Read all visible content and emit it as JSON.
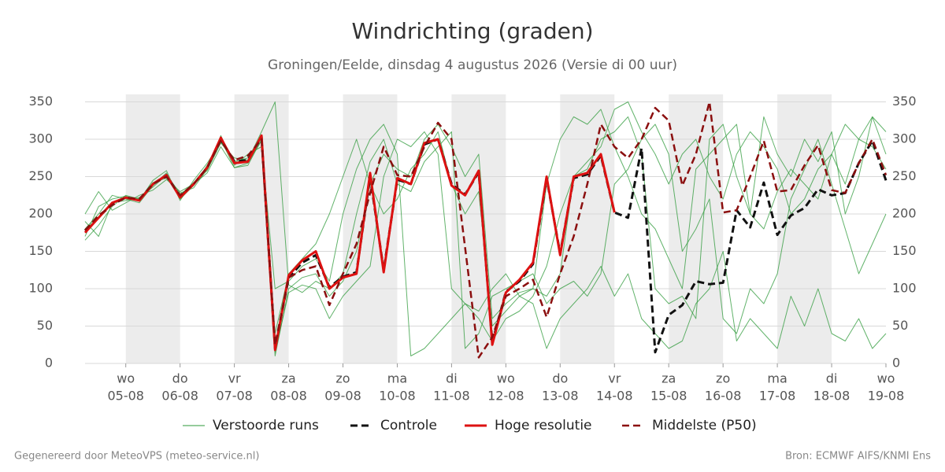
{
  "chart_data": {
    "type": "line",
    "title": "Windrichting (graden)",
    "subtitle": "Groningen/Eelde, dinsdag  4 augustus 2026 (Versie di 00 uur)",
    "footer_left": "Gegenereerd door MeteoVPS (meteo-service.nl)",
    "footer_right": "Bron: ECMWF AIFS/KNMI Ens",
    "x": [
      4.25,
      4.5,
      4.75,
      5,
      5.25,
      5.5,
      5.75,
      6,
      6.25,
      6.5,
      6.75,
      7,
      7.25,
      7.5,
      7.75,
      8,
      8.25,
      8.5,
      8.75,
      9,
      9.25,
      9.5,
      9.75,
      10,
      10.25,
      10.5,
      10.75,
      11,
      11.25,
      11.5,
      11.75,
      12,
      12.25,
      12.5,
      12.75,
      13,
      13.25,
      13.5,
      13.75,
      14,
      14.25,
      14.5,
      14.75,
      15,
      15.25,
      15.5,
      15.75,
      16,
      16.25,
      16.5,
      16.75,
      17,
      17.25,
      17.5,
      17.75,
      18,
      18.25,
      18.5,
      18.75,
      19
    ],
    "xlim": [
      4.25,
      19
    ],
    "xticks": [
      {
        "value": 5,
        "label": "05-08",
        "weekday": "wo"
      },
      {
        "value": 6,
        "label": "06-08",
        "weekday": "do"
      },
      {
        "value": 7,
        "label": "07-08",
        "weekday": "vr"
      },
      {
        "value": 8,
        "label": "08-08",
        "weekday": "za"
      },
      {
        "value": 9,
        "label": "09-08",
        "weekday": "zo"
      },
      {
        "value": 10,
        "label": "10-08",
        "weekday": "ma"
      },
      {
        "value": 11,
        "label": "11-08",
        "weekday": "di"
      },
      {
        "value": 12,
        "label": "12-08",
        "weekday": "wo"
      },
      {
        "value": 13,
        "label": "13-08",
        "weekday": "do"
      },
      {
        "value": 14,
        "label": "14-08",
        "weekday": "vr"
      },
      {
        "value": 15,
        "label": "15-08",
        "weekday": "za"
      },
      {
        "value": 16,
        "label": "16-08",
        "weekday": "zo"
      },
      {
        "value": 17,
        "label": "17-08",
        "weekday": "ma"
      },
      {
        "value": 18,
        "label": "18-08",
        "weekday": "di"
      },
      {
        "value": 19,
        "label": "19-08",
        "weekday": "wo"
      }
    ],
    "shade": [
      [
        5,
        6
      ],
      [
        7,
        8
      ],
      [
        9,
        10
      ],
      [
        11,
        12
      ],
      [
        13,
        14
      ],
      [
        15,
        16
      ],
      [
        17,
        18
      ]
    ],
    "ylim": [
      0,
      360
    ],
    "yticks": [
      0,
      50,
      100,
      150,
      200,
      250,
      300,
      350
    ],
    "grid": true,
    "ensemble": {
      "name": "Verstoorde runs",
      "color": "#2e9a3a",
      "runs": [
        [
          180,
          200,
          225,
          220,
          215,
          238,
          255,
          220,
          238,
          265,
          300,
          262,
          265,
          300,
          10,
          100,
          115,
          120,
          90,
          110,
          150,
          240,
          280,
          260,
          250,
          300,
          320,
          290,
          250,
          280,
          60,
          80,
          95,
          100,
          90,
          120,
          250,
          260,
          300,
          310,
          330,
          280,
          100,
          80,
          90,
          60,
          300,
          320,
          250,
          200,
          330,
          280,
          250,
          300,
          270,
          310,
          200,
          250,
          330,
          280
        ],
        [
          165,
          185,
          210,
          225,
          220,
          242,
          248,
          225,
          242,
          258,
          295,
          275,
          272,
          310,
          350,
          105,
          95,
          110,
          100,
          120,
          200,
          270,
          300,
          240,
          230,
          270,
          290,
          310,
          20,
          40,
          90,
          100,
          110,
          120,
          80,
          100,
          110,
          90,
          120,
          240,
          260,
          300,
          320,
          280,
          150,
          180,
          220,
          60,
          40,
          100,
          80,
          120,
          220,
          260,
          300,
          240,
          180,
          120,
          160,
          200
        ],
        [
          190,
          170,
          215,
          218,
          222,
          236,
          252,
          228,
          235,
          260,
          305,
          265,
          280,
          290,
          100,
          110,
          130,
          140,
          110,
          200,
          260,
          300,
          320,
          280,
          10,
          20,
          40,
          60,
          80,
          70,
          100,
          120,
          90,
          100,
          240,
          300,
          330,
          320,
          340,
          290,
          250,
          200,
          180,
          140,
          100,
          260,
          280,
          300,
          320,
          200,
          180,
          230,
          260,
          240,
          220,
          280,
          320,
          300,
          290,
          260
        ],
        [
          170,
          210,
          220,
          224,
          218,
          245,
          258,
          218,
          245,
          268,
          296,
          270,
          275,
          305,
          15,
          95,
          105,
          100,
          60,
          90,
          110,
          130,
          250,
          300,
          290,
          310,
          280,
          100,
          80,
          60,
          30,
          60,
          70,
          90,
          130,
          200,
          250,
          270,
          290,
          340,
          350,
          310,
          280,
          240,
          280,
          300,
          250,
          220,
          280,
          310,
          290,
          260,
          200,
          220,
          260,
          280,
          240,
          300,
          330,
          310
        ],
        [
          200,
          230,
          205,
          215,
          225,
          232,
          246,
          230,
          240,
          255,
          290,
          262,
          268,
          298,
          40,
          120,
          140,
          160,
          200,
          250,
          300,
          240,
          200,
          220,
          260,
          280,
          310,
          240,
          200,
          230,
          50,
          70,
          90,
          80,
          20,
          60,
          80,
          100,
          130,
          90,
          120,
          60,
          40,
          20,
          30,
          80,
          100,
          150,
          30,
          60,
          40,
          20,
          90,
          50,
          100,
          40,
          30,
          60,
          20,
          40
        ]
      ]
    },
    "series": [
      {
        "name": "Controle",
        "color": "#111111",
        "dash": true,
        "width": 3,
        "values": [
          178,
          196,
          213,
          222,
          219,
          240,
          252,
          223,
          240,
          262,
          300,
          270,
          272,
          303,
          20,
          115,
          135,
          145,
          102,
          116,
          122,
          250,
          125,
          246,
          240,
          293,
          300,
          240,
          226,
          256,
          28,
          96,
          110,
          133,
          248,
          147,
          248,
          253,
          278,
          202,
          195,
          288,
          15,
          65,
          78,
          110,
          106,
          108,
          205,
          182,
          242,
          172,
          198,
          208,
          233,
          225,
          228,
          268,
          298,
          245
        ]
      },
      {
        "name": "Hoge resolutie",
        "color": "#dd1111",
        "dash": false,
        "width": 3,
        "values": [
          175,
          195,
          215,
          222,
          218,
          240,
          252,
          222,
          240,
          262,
          302,
          268,
          270,
          305,
          18,
          118,
          138,
          150,
          100,
          115,
          120,
          255,
          122,
          248,
          240,
          295,
          300,
          238,
          225,
          258,
          25,
          95,
          112,
          135,
          250,
          145,
          250,
          255,
          280,
          202,
          null,
          null,
          null,
          null,
          null,
          null,
          null,
          null,
          null,
          null,
          null,
          null,
          null,
          null,
          null,
          null,
          null,
          null,
          null,
          null
        ]
      },
      {
        "name": "Middelste (P50)",
        "color": "#8b0f0f",
        "dash": true,
        "width": 2.5,
        "values": [
          178,
          198,
          212,
          222,
          220,
          240,
          250,
          225,
          240,
          262,
          298,
          272,
          278,
          300,
          25,
          115,
          125,
          130,
          78,
          120,
          160,
          228,
          290,
          252,
          250,
          290,
          322,
          300,
          155,
          8,
          35,
          90,
          100,
          112,
          62,
          120,
          170,
          240,
          320,
          290,
          275,
          300,
          342,
          325,
          238,
          280,
          350,
          202,
          205,
          250,
          298,
          230,
          232,
          265,
          292,
          232,
          228,
          268,
          300,
          252
        ]
      }
    ]
  }
}
